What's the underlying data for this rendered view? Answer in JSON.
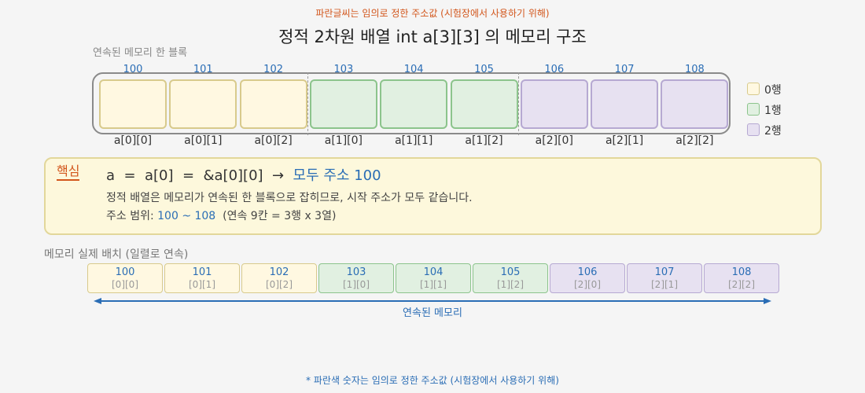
{
  "note": "파란글씨는 임의로 정한 주소값 (시험장에서 사용하기 위해)",
  "title": "정적 2차원 배열  int a[3][3]  의 메모리 구조",
  "block_label": "연속된 메모리 한 블록",
  "colors": {
    "rows": [
      {
        "fill": "#fff8e1",
        "border": "#d8ca8c"
      },
      {
        "fill": "#e1f0e1",
        "border": "#8cc48c"
      },
      {
        "fill": "#e7e1f1",
        "border": "#b6a9d2"
      }
    ],
    "accent_blue": "#2a6db5",
    "accent_orange": "#d2561c"
  },
  "cells": [
    {
      "addr": "100",
      "name": "a[0][0]",
      "idx": "[0][0]",
      "row": 0
    },
    {
      "addr": "101",
      "name": "a[0][1]",
      "idx": "[0][1]",
      "row": 0
    },
    {
      "addr": "102",
      "name": "a[0][2]",
      "idx": "[0][2]",
      "row": 0
    },
    {
      "addr": "103",
      "name": "a[1][0]",
      "idx": "[1][0]",
      "row": 1
    },
    {
      "addr": "104",
      "name": "a[1][1]",
      "idx": "[1][1]",
      "row": 1
    },
    {
      "addr": "105",
      "name": "a[1][2]",
      "idx": "[1][2]",
      "row": 1
    },
    {
      "addr": "106",
      "name": "a[2][0]",
      "idx": "[2][0]",
      "row": 2
    },
    {
      "addr": "107",
      "name": "a[2][1]",
      "idx": "[2][1]",
      "row": 2
    },
    {
      "addr": "108",
      "name": "a[2][2]",
      "idx": "[2][2]",
      "row": 2
    }
  ],
  "legend": [
    "0행",
    "1행",
    "2행"
  ],
  "key": {
    "tag": "핵심",
    "equation": "a  =  a[0]  =  &a[0][0]  →  ",
    "equation_result": "모두 주소 100",
    "line2": "정적 배열은 메모리가 연속된 한 블록으로 잡히므로, 시작 주소가 모두 같습니다.",
    "line3_prefix": "주소 범위: ",
    "line3_range": "100 ~ 108",
    "line3_suffix": "  (연속 9칸 = 3행 x 3열)"
  },
  "layout_label": "메모리 실제 배치 (일렬로 연속)",
  "arrow_label": "연속된 메모리",
  "footnote": "* 파란색 숫자는 임의로 정한 주소값 (시험장에서 사용하기 위해)"
}
